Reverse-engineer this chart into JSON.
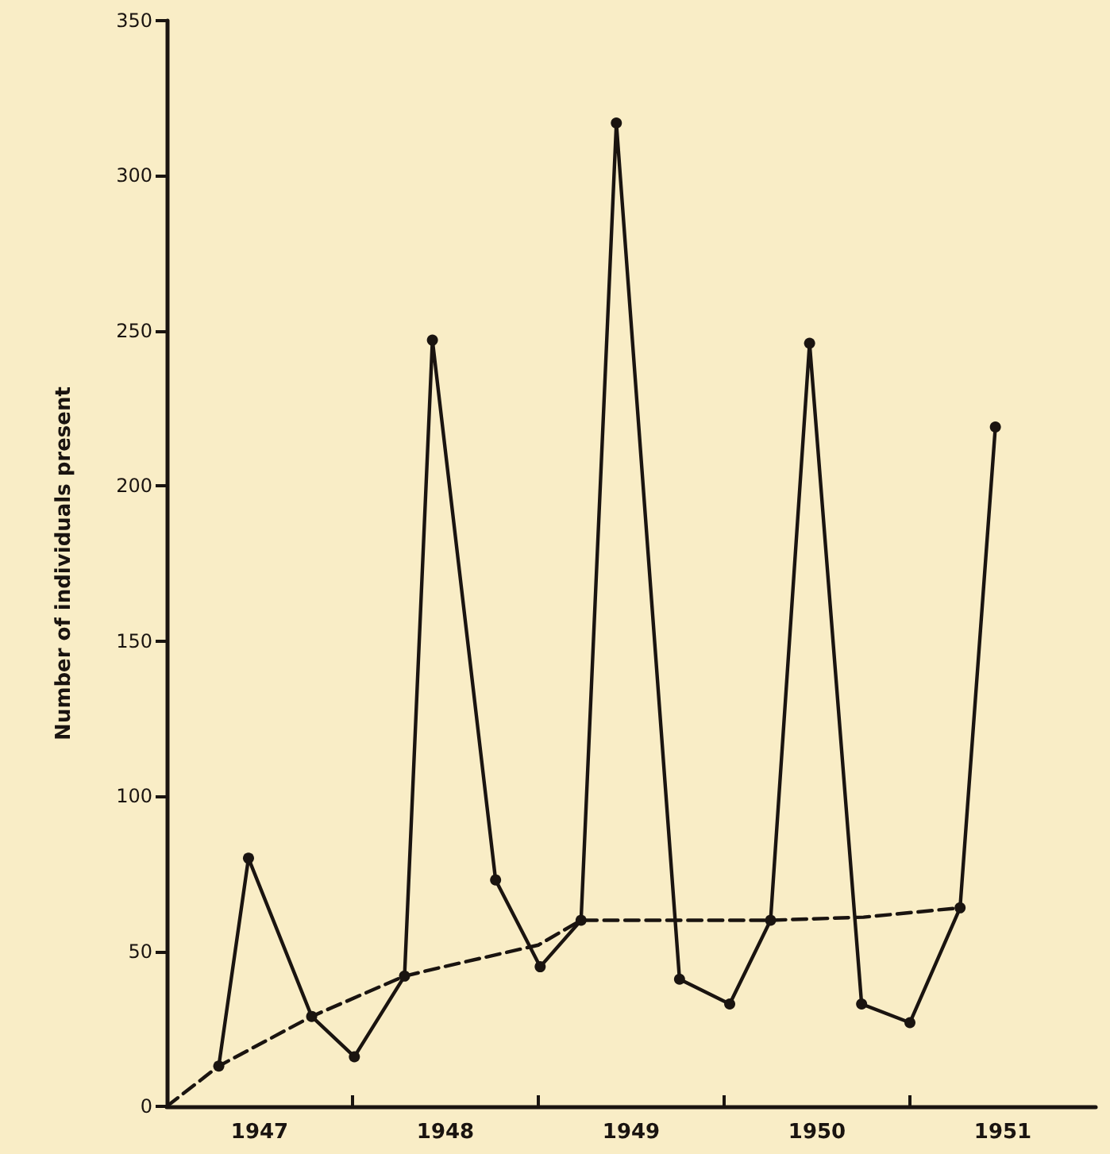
{
  "chart_data": {
    "type": "line",
    "ylabel": "Number of individuals present",
    "xlim": [
      1947,
      1952
    ],
    "xticks": [
      {
        "value": 1947.5,
        "label": "1947"
      },
      {
        "value": 1948,
        "label": null
      },
      {
        "value": 1948.5,
        "label": "1948"
      },
      {
        "value": 1949,
        "label": null
      },
      {
        "value": 1949.5,
        "label": "1949"
      },
      {
        "value": 1950,
        "label": null
      },
      {
        "value": 1950.5,
        "label": "1950"
      },
      {
        "value": 1951,
        "label": null
      },
      {
        "value": 1951.5,
        "label": "1951"
      }
    ],
    "ylim": [
      0,
      350
    ],
    "yticks": [
      0,
      50,
      100,
      150,
      200,
      250,
      300,
      350
    ],
    "grid": false,
    "series": [
      {
        "color": "#1a1410",
        "marker": "circle",
        "line_style": "solid",
        "x": [
          1947.28,
          1947.44,
          1947.78,
          1948.01,
          1948.28,
          1948.43,
          1948.77,
          1949.01,
          1949.23,
          1949.42,
          1949.76,
          1950.03,
          1950.25,
          1950.46,
          1950.74,
          1951.0,
          1951.27,
          1951.46
        ],
        "values": [
          13,
          80,
          29,
          16,
          42,
          247,
          73,
          45,
          60,
          317,
          41,
          33,
          60,
          246,
          33,
          27,
          64,
          219
        ]
      },
      {
        "color": "#1a1410",
        "marker": "none",
        "line_style": "dashed",
        "x": [
          1947,
          1947.28,
          1947.78,
          1948.28,
          1948.49,
          1949.0,
          1949.23,
          1950.25,
          1950.75,
          1951.27
        ],
        "values": [
          0,
          13,
          29,
          42,
          45,
          52,
          60,
          60,
          61,
          64
        ]
      }
    ]
  }
}
